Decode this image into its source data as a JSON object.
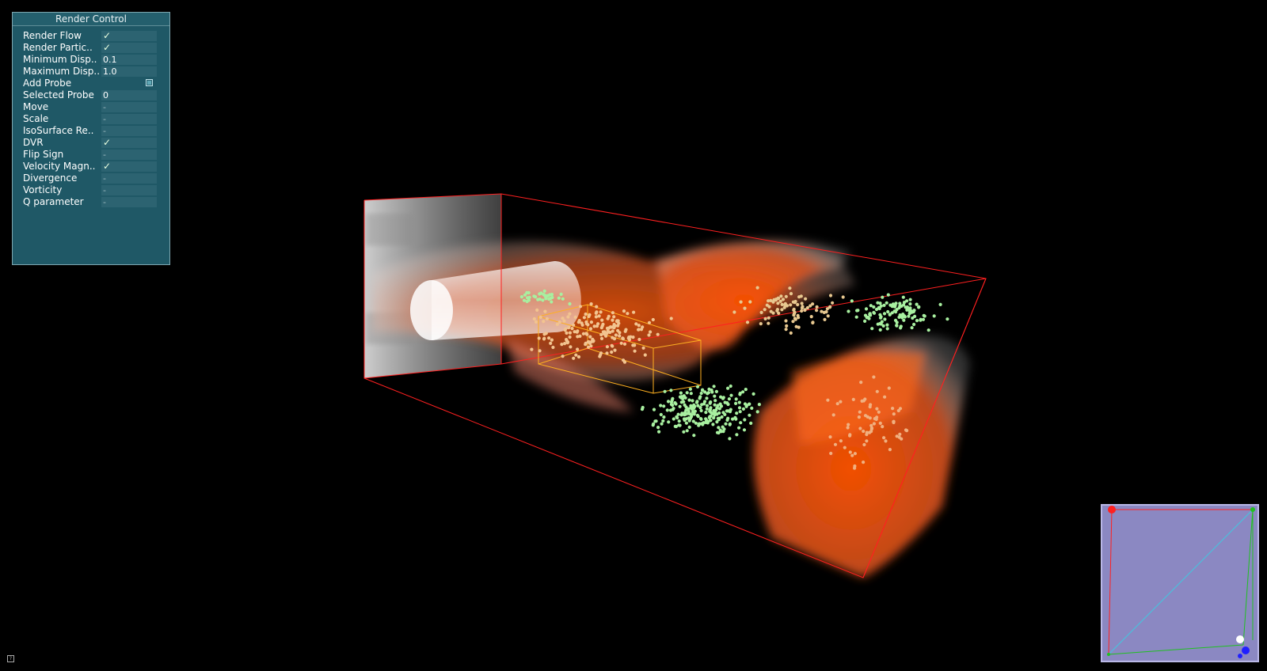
{
  "panel": {
    "title": "Render Control",
    "rows": [
      {
        "label": "Render Flow",
        "value": "✓",
        "kind": "check"
      },
      {
        "label": "Render Partic..",
        "value": "✓",
        "kind": "check"
      },
      {
        "label": "Minimum Disp..",
        "value": "0.1",
        "kind": "text"
      },
      {
        "label": "Maximum Disp..",
        "value": "1.0",
        "kind": "text"
      },
      {
        "label": "Add Probe",
        "value": "",
        "kind": "button"
      },
      {
        "label": "Selected Probe",
        "value": "0",
        "kind": "text"
      },
      {
        "label": "Move",
        "value": "-",
        "kind": "dash"
      },
      {
        "label": "Scale",
        "value": "-",
        "kind": "dash"
      },
      {
        "label": "IsoSurface Re..",
        "value": "-",
        "kind": "dash"
      },
      {
        "label": "DVR",
        "value": "✓",
        "kind": "check"
      },
      {
        "label": "Flip Sign",
        "value": "-",
        "kind": "dash"
      },
      {
        "label": "Velocity Magn..",
        "value": "✓",
        "kind": "check"
      },
      {
        "label": "Divergence",
        "value": "-",
        "kind": "dash"
      },
      {
        "label": "Vorticity",
        "value": "-",
        "kind": "dash"
      },
      {
        "label": "Q parameter",
        "value": "-",
        "kind": "dash"
      }
    ]
  },
  "colors": {
    "background": "#000000",
    "panel_bg": "#1f5866",
    "bounding_box": "#ff2020",
    "probe_box": "#ffb020",
    "flow_orange": "#f2570f",
    "particles": "#a8f0a0",
    "orientation_bg": "#8b88c2",
    "axis_x": "#ff2020",
    "axis_y": "#20c020",
    "axis_z": "#2020ff",
    "diagonal": "#40c8e0"
  },
  "icons": {
    "check": "check-icon",
    "add_probe": "checkbox-icon",
    "corner": "help-icon"
  }
}
